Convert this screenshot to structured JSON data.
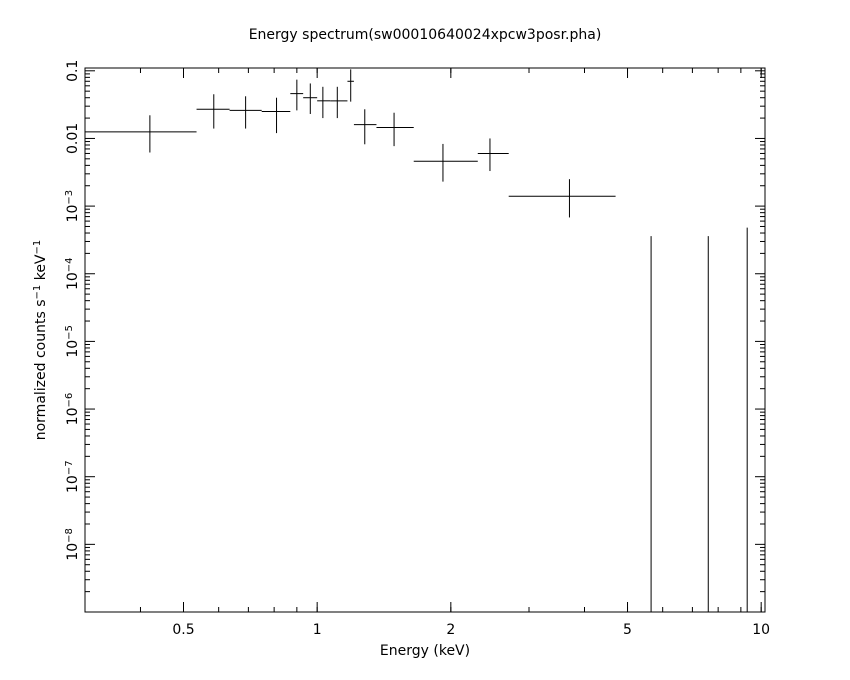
{
  "chart_data": {
    "type": "scatter",
    "title": "Energy spectrum(sw00010640024xpcw3posr.pha)",
    "xlabel": "Energy (keV)",
    "ylabel_parts": {
      "base": "normalized counts s",
      "sup1": "−1",
      "mid": " keV",
      "sup2": "−1"
    },
    "x_scale": "log",
    "y_scale": "log",
    "xlim": [
      0.3,
      10.2
    ],
    "ylim": [
      1e-09,
      0.11
    ],
    "x_ticks": [
      {
        "value": 0.5,
        "label": "0.5"
      },
      {
        "value": 1,
        "label": "1"
      },
      {
        "value": 2,
        "label": "2"
      },
      {
        "value": 5,
        "label": "5"
      },
      {
        "value": 10,
        "label": "10"
      }
    ],
    "y_ticks": [
      {
        "value": 0.1,
        "label": "0.1",
        "base": "",
        "exp": ""
      },
      {
        "value": 0.01,
        "label": "0.01",
        "base": "",
        "exp": ""
      },
      {
        "value": 0.001,
        "label": "",
        "base": "10",
        "exp": "−3"
      },
      {
        "value": 0.0001,
        "label": "",
        "base": "10",
        "exp": "−4"
      },
      {
        "value": 1e-05,
        "label": "",
        "base": "10",
        "exp": "−5"
      },
      {
        "value": 1e-06,
        "label": "",
        "base": "10",
        "exp": "−6"
      },
      {
        "value": 1e-07,
        "label": "",
        "base": "10",
        "exp": "−7"
      },
      {
        "value": 1e-08,
        "label": "",
        "base": "10",
        "exp": "−8"
      }
    ],
    "points": [
      {
        "x": 0.42,
        "x_lo": 0.3,
        "x_hi": 0.535,
        "y": 0.0125,
        "y_lo": 0.0062,
        "y_hi": 0.022
      },
      {
        "x": 0.585,
        "x_lo": 0.535,
        "x_hi": 0.635,
        "y": 0.027,
        "y_lo": 0.014,
        "y_hi": 0.045
      },
      {
        "x": 0.69,
        "x_lo": 0.635,
        "x_hi": 0.75,
        "y": 0.026,
        "y_lo": 0.014,
        "y_hi": 0.042
      },
      {
        "x": 0.81,
        "x_lo": 0.75,
        "x_hi": 0.87,
        "y": 0.025,
        "y_lo": 0.012,
        "y_hi": 0.04
      },
      {
        "x": 0.9,
        "x_lo": 0.87,
        "x_hi": 0.93,
        "y": 0.046,
        "y_lo": 0.026,
        "y_hi": 0.074
      },
      {
        "x": 0.965,
        "x_lo": 0.93,
        "x_hi": 1.0,
        "y": 0.04,
        "y_lo": 0.023,
        "y_hi": 0.065
      },
      {
        "x": 1.03,
        "x_lo": 1.0,
        "x_hi": 1.07,
        "y": 0.036,
        "y_lo": 0.02,
        "y_hi": 0.058
      },
      {
        "x": 1.11,
        "x_lo": 1.07,
        "x_hi": 1.17,
        "y": 0.036,
        "y_lo": 0.02,
        "y_hi": 0.058
      },
      {
        "x": 1.19,
        "x_lo": 1.17,
        "x_hi": 1.21,
        "y": 0.07,
        "y_lo": 0.035,
        "y_hi": 0.105
      },
      {
        "x": 1.28,
        "x_lo": 1.21,
        "x_hi": 1.36,
        "y": 0.016,
        "y_lo": 0.0082,
        "y_hi": 0.027
      },
      {
        "x": 1.49,
        "x_lo": 1.36,
        "x_hi": 1.65,
        "y": 0.0145,
        "y_lo": 0.0077,
        "y_hi": 0.024
      },
      {
        "x": 1.92,
        "x_lo": 1.65,
        "x_hi": 2.3,
        "y": 0.0046,
        "y_lo": 0.0023,
        "y_hi": 0.0083
      },
      {
        "x": 2.45,
        "x_lo": 2.3,
        "x_hi": 2.7,
        "y": 0.006,
        "y_lo": 0.0033,
        "y_hi": 0.01
      },
      {
        "x": 3.7,
        "x_lo": 2.7,
        "x_hi": 4.7,
        "y": 0.0014,
        "y_lo": 0.00068,
        "y_hi": 0.0025
      },
      {
        "x": 5.65,
        "x_lo": 5.65,
        "x_hi": 5.65,
        "y": 0.00036,
        "y_lo": 1e-09,
        "y_hi": 0.00036
      },
      {
        "x": 7.6,
        "x_lo": 7.6,
        "x_hi": 7.6,
        "y": 0.00036,
        "y_lo": 1e-09,
        "y_hi": 0.00036
      },
      {
        "x": 9.3,
        "x_lo": 9.3,
        "x_hi": 9.3,
        "y": 0.00048,
        "y_lo": 1e-09,
        "y_hi": 0.00048
      }
    ]
  }
}
